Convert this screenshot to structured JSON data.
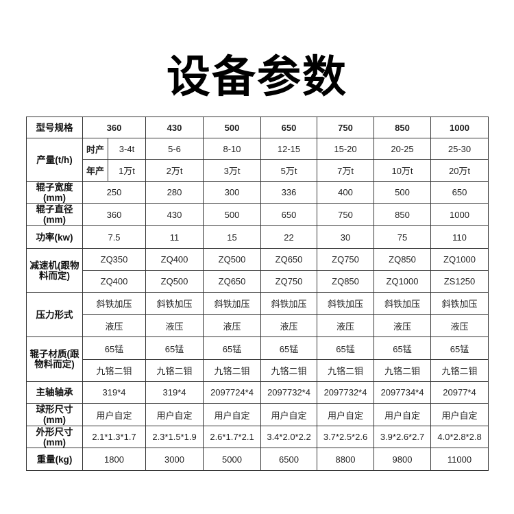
{
  "title": "设备参数",
  "table": {
    "header": {
      "label": "型号规格",
      "models": [
        "360",
        "430",
        "500",
        "650",
        "750",
        "850",
        "1000"
      ]
    },
    "output": {
      "label": "产量(t/h)",
      "rows": [
        {
          "sublabel": "时产",
          "values": [
            "3-4t",
            "5-6",
            "8-10",
            "12-15",
            "15-20",
            "20-25",
            "25-30"
          ]
        },
        {
          "sublabel": "年产",
          "values": [
            "1万t",
            "2万t",
            "3万t",
            "5万t",
            "7万t",
            "10万t",
            "20万t"
          ]
        }
      ]
    },
    "rows": [
      {
        "label": "辊子宽度(mm)",
        "lines": [
          [
            "250",
            "280",
            "300",
            "336",
            "400",
            "500",
            "650"
          ]
        ]
      },
      {
        "label": "辊子直径(mm)",
        "lines": [
          [
            "360",
            "430",
            "500",
            "650",
            "750",
            "850",
            "1000"
          ]
        ]
      },
      {
        "label": "功率(kw)",
        "lines": [
          [
            "7.5",
            "11",
            "15",
            "22",
            "30",
            "75",
            "110"
          ]
        ]
      },
      {
        "label": "减速机(跟物料而定)",
        "lines": [
          [
            "ZQ350",
            "ZQ400",
            "ZQ500",
            "ZQ650",
            "ZQ750",
            "ZQ850",
            "ZQ1000"
          ],
          [
            "ZQ400",
            "ZQ500",
            "ZQ650",
            "ZQ750",
            "ZQ850",
            "ZQ1000",
            "ZS1250"
          ]
        ]
      },
      {
        "label": "压力形式",
        "lines": [
          [
            "斜铁加压",
            "斜铁加压",
            "斜铁加压",
            "斜铁加压",
            "斜铁加压",
            "斜铁加压",
            "斜铁加压"
          ],
          [
            "液压",
            "液压",
            "液压",
            "液压",
            "液压",
            "液压",
            "液压"
          ]
        ]
      },
      {
        "label": "辊子材质(跟物料而定)",
        "lines": [
          [
            "65锰",
            "65锰",
            "65锰",
            "65锰",
            "65锰",
            "65锰",
            "65锰"
          ],
          [
            "九铬二钼",
            "九铬二钼",
            "九铬二钼",
            "九铬二钼",
            "九铬二钼",
            "九铬二钼",
            "九铬二钼"
          ]
        ]
      },
      {
        "label": "主轴轴承",
        "lines": [
          [
            "319*4",
            "319*4",
            "2097724*4",
            "2097732*4",
            "2097732*4",
            "2097734*4",
            "20977*4"
          ]
        ]
      },
      {
        "label": "球形尺寸(mm)",
        "lines": [
          [
            "用户自定",
            "用户自定",
            "用户自定",
            "用户自定",
            "用户自定",
            "用户自定",
            "用户自定"
          ]
        ]
      },
      {
        "label": "外形尺寸(mm)",
        "lines": [
          [
            "2.1*1.3*1.7",
            "2.3*1.5*1.9",
            "2.6*1.7*2.1",
            "3.4*2.0*2.2",
            "3.7*2.5*2.6",
            "3.9*2.6*2.7",
            "4.0*2.8*2.8"
          ]
        ]
      },
      {
        "label": "重量(kg)",
        "lines": [
          [
            "1800",
            "3000",
            "5000",
            "6500",
            "8800",
            "9800",
            "11000"
          ]
        ]
      }
    ]
  }
}
